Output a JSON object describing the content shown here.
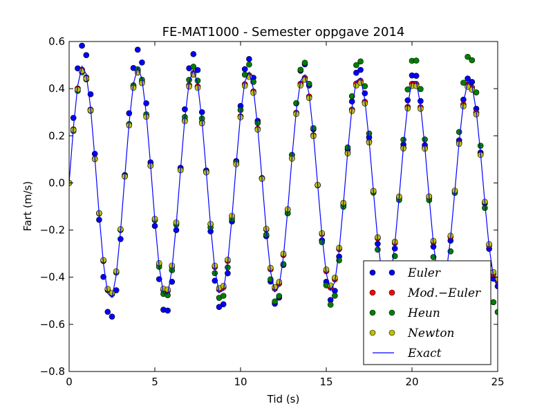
{
  "chart_data": {
    "type": "scatter",
    "title": "FE-MAT1000 - Semester oppgave 2014",
    "xlabel": "Tid (s)",
    "ylabel": "Fart (m/s)",
    "xlim": [
      0,
      25
    ],
    "ylim": [
      -0.8,
      0.6
    ],
    "xticks": [
      0,
      5,
      10,
      15,
      20,
      25
    ],
    "yticks": [
      -0.8,
      -0.6,
      -0.4,
      -0.2,
      0.0,
      0.2,
      0.4,
      0.6
    ],
    "xtick_labels": [
      "0",
      "5",
      "10",
      "15",
      "20",
      "25"
    ],
    "ytick_labels": [
      "−0.8",
      "−0.6",
      "−0.4",
      "−0.2",
      "0.0",
      "0.2",
      "0.4",
      "0.6"
    ],
    "grid": false,
    "legend_position": "lower-right",
    "model": {
      "description_of_series_values": "Each series sampled at t = 0 .. 25 step 0.25 s",
      "t_start": 0,
      "t_end": 25,
      "dt": 0.25,
      "period": 3.22,
      "initial_amplitude": 0.5
    },
    "series": [
      {
        "name": "Euler",
        "kind": "points",
        "color": "#0000ff",
        "amplitude_start": 0.59,
        "amplitude_end": 0.44
      },
      {
        "name": "Mod.−Euler",
        "kind": "points",
        "color": "#ff0000",
        "amplitude_start": 0.485,
        "amplitude_end": 0.42
      },
      {
        "name": "Heun",
        "kind": "points",
        "color": "#008000",
        "amplitude_start": 0.47,
        "amplitude_end": 0.55
      },
      {
        "name": "Newton",
        "kind": "points",
        "color": "#bfbf00",
        "amplitude_start": 0.48,
        "amplitude_end": 0.41
      },
      {
        "name": "Exact",
        "kind": "line",
        "color": "#0000ff",
        "amplitude_start": 0.5,
        "amplitude_end": 0.43
      }
    ]
  }
}
